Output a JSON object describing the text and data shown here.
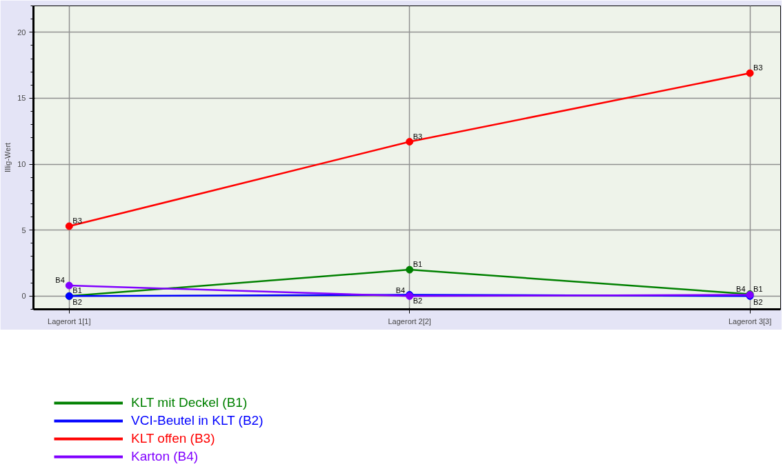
{
  "chart_data": {
    "type": "line",
    "ylabel": "Illig-Wert",
    "categories": [
      "Lagerort 1[1]",
      "Lagerort 2[2]",
      "Lagerort 3[3]"
    ],
    "series": [
      {
        "name": "KLT mit Deckel (B1)",
        "color": "#008000",
        "values": [
          0,
          2.0,
          0.15
        ],
        "value_labels": [
          "B1",
          "B1",
          "B1"
        ]
      },
      {
        "name": "VCI-Beutel in KLT (B2)",
        "color": "#0000ff",
        "values": [
          0,
          0.1,
          0
        ],
        "value_labels": [
          "B2",
          "B2",
          "B2"
        ]
      },
      {
        "name": "KLT offen (B3)",
        "color": "#ff0000",
        "values": [
          5.3,
          11.7,
          16.9
        ],
        "value_labels": [
          "B3",
          "B3",
          "B3"
        ]
      },
      {
        "name": "Karton (B4)",
        "color": "#8000ff",
        "values": [
          0.8,
          0,
          0.1
        ],
        "value_labels": [
          "B4",
          "B4",
          "B4"
        ]
      }
    ],
    "ylim": [
      -1,
      22
    ],
    "yticks": [
      0,
      5,
      10,
      15,
      20
    ],
    "grid": true,
    "legend": "bottom",
    "marker": "circle",
    "line_style": "solid"
  }
}
